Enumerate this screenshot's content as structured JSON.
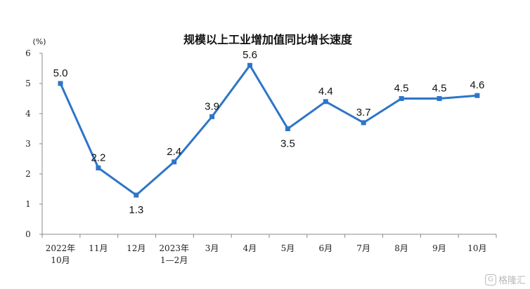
{
  "chart_data": {
    "type": "line",
    "title": "规模以上工业增加值同比增长速度",
    "unit": "(%)",
    "ylim": [
      0,
      6
    ],
    "yticks": [
      "0",
      "1",
      "2",
      "3",
      "4",
      "5",
      "6"
    ],
    "categories": [
      [
        "2022年",
        "10月"
      ],
      [
        "11月"
      ],
      [
        "12月"
      ],
      [
        "2023年",
        "1—2月"
      ],
      [
        "3月"
      ],
      [
        "4月"
      ],
      [
        "5月"
      ],
      [
        "6月"
      ],
      [
        "7月"
      ],
      [
        "8月"
      ],
      [
        "9月"
      ],
      [
        "10月"
      ]
    ],
    "series": [
      {
        "values": [
          5.0,
          2.2,
          1.3,
          2.4,
          3.9,
          5.6,
          3.5,
          4.4,
          3.7,
          4.5,
          4.5,
          4.6
        ],
        "labels": [
          "5.0",
          "2.2",
          "1.3",
          "2.4",
          "3.9",
          "5.6",
          "3.5",
          "4.4",
          "3.7",
          "4.5",
          "4.5",
          "4.6"
        ],
        "label_side": [
          "above",
          "above",
          "below",
          "above",
          "above",
          "above",
          "below",
          "above",
          "above",
          "above",
          "above",
          "above"
        ],
        "color": "#2e75c8"
      }
    ],
    "grid": false,
    "legend": "none"
  },
  "watermark": {
    "icon": "G",
    "text": "格隆汇"
  }
}
